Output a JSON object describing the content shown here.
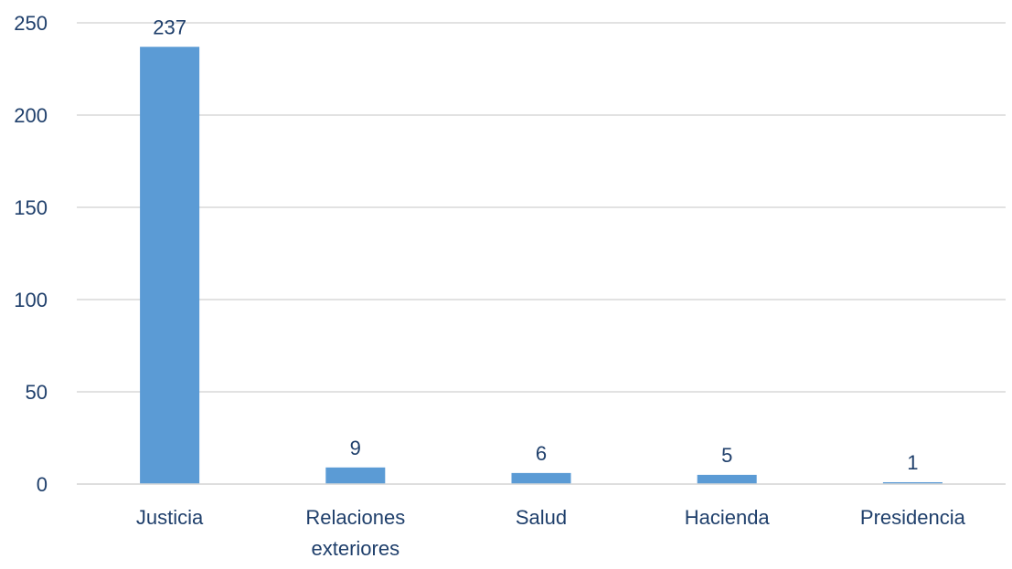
{
  "chart_data": {
    "type": "bar",
    "title": "",
    "xlabel": "",
    "ylabel": "",
    "categories": [
      [
        "Justicia"
      ],
      [
        "Relaciones",
        "exteriores"
      ],
      [
        "Salud"
      ],
      [
        "Hacienda"
      ],
      [
        "Presidencia"
      ]
    ],
    "values": [
      237,
      9,
      6,
      5,
      1
    ],
    "data_labels": [
      "237",
      "9",
      "6",
      "5",
      "1"
    ],
    "ylim": [
      0,
      250
    ],
    "yticks": [
      0,
      50,
      100,
      150,
      200,
      250
    ],
    "ytick_labels": [
      "0",
      "50",
      "100",
      "150",
      "200",
      "250"
    ],
    "grid": true,
    "bar_color": "#5b9bd5",
    "grid_color": "#d9d9d9",
    "text_color": "#1f3f6b"
  }
}
